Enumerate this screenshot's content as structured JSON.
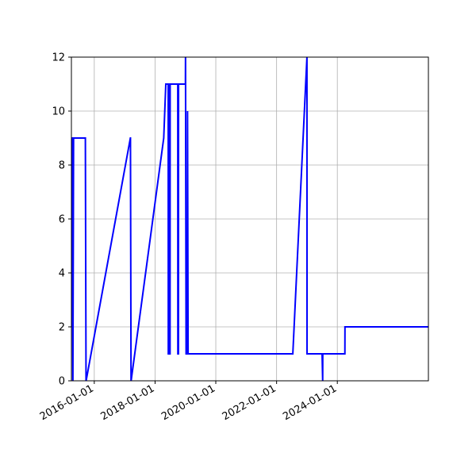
{
  "chart_data": {
    "type": "line",
    "title": "",
    "xlabel": "",
    "ylabel": "",
    "x_axis_type": "date",
    "xlim": [
      "2015-04-01",
      "2026-12-31"
    ],
    "ylim": [
      0,
      12
    ],
    "grid": true,
    "y_ticks": [
      0,
      2,
      4,
      6,
      8,
      10,
      12
    ],
    "x_ticks": [
      "2016-01-01",
      "2018-01-01",
      "2020-01-01",
      "2022-01-01",
      "2024-01-01"
    ],
    "series": [
      {
        "color": "#0000ff",
        "x": [
          "2015-04-01",
          "2015-04-10",
          "2015-04-11",
          "2015-04-18",
          "2015-04-19",
          "2015-04-27",
          "2015-04-28",
          "2015-09-15",
          "2015-09-16",
          "2015-09-24",
          "2015-09-25",
          "2017-03-10",
          "2017-03-11",
          "2017-03-18",
          "2017-03-19",
          "2018-04-15",
          "2018-05-10",
          "2018-06-01",
          "2018-06-08",
          "2018-06-09",
          "2018-06-15",
          "2018-06-16",
          "2018-06-22",
          "2018-06-23",
          "2018-06-30",
          "2018-07-01",
          "2018-10-01",
          "2018-10-02",
          "2018-10-09",
          "2018-10-10",
          "2019-01-01",
          "2019-01-02",
          "2019-01-09",
          "2019-01-10",
          "2019-01-25",
          "2019-01-26",
          "2019-02-02",
          "2019-02-03",
          "2022-07-15",
          "2023-01-01",
          "2023-01-02",
          "2023-07-01",
          "2023-07-02",
          "2023-07-09",
          "2023-07-10",
          "2024-04-01",
          "2024-04-02",
          "2026-12-31"
        ],
        "y": [
          2,
          9,
          9,
          0,
          0,
          9,
          9,
          9,
          9,
          0,
          0,
          9,
          9,
          0,
          0,
          9,
          11,
          11,
          11,
          1,
          1,
          11,
          11,
          1,
          1,
          11,
          11,
          1,
          1,
          11,
          11,
          12,
          1,
          1,
          1,
          10,
          1,
          1,
          1,
          12,
          1,
          1,
          1,
          0,
          1,
          1,
          2,
          2
        ]
      }
    ]
  }
}
